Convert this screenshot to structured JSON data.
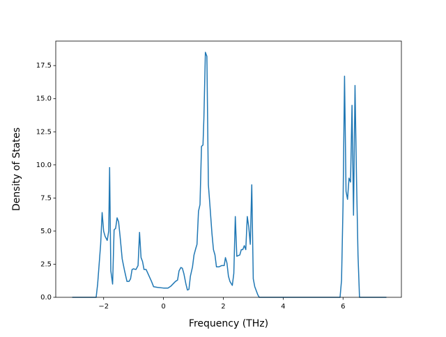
{
  "chart_data": {
    "type": "line",
    "xlabel": "Frequency (THz)",
    "ylabel": "Density of States",
    "x": [
      -3.05,
      -2.25,
      -2.2,
      -2.1,
      -2.05,
      -2.0,
      -1.95,
      -1.88,
      -1.83,
      -1.8,
      -1.76,
      -1.7,
      -1.65,
      -1.6,
      -1.55,
      -1.5,
      -1.45,
      -1.38,
      -1.3,
      -1.22,
      -1.15,
      -1.1,
      -1.05,
      -1.0,
      -0.92,
      -0.85,
      -0.8,
      -0.75,
      -0.7,
      -0.65,
      -0.58,
      -0.5,
      -0.4,
      -0.33,
      -0.2,
      0,
      0.15,
      0.25,
      0.4,
      0.47,
      0.52,
      0.58,
      0.63,
      0.68,
      0.75,
      0.8,
      0.85,
      0.9,
      0.97,
      1.02,
      1.08,
      1.12,
      1.17,
      1.22,
      1.27,
      1.32,
      1.35,
      1.4,
      1.45,
      1.5,
      1.55,
      1.62,
      1.67,
      1.72,
      1.77,
      1.85,
      1.95,
      2.03,
      2.07,
      2.12,
      2.17,
      2.22,
      2.3,
      2.35,
      2.4,
      2.45,
      2.5,
      2.55,
      2.6,
      2.65,
      2.7,
      2.75,
      2.8,
      2.85,
      2.9,
      2.95,
      3.0,
      3.05,
      3.15,
      3.2,
      5.9,
      5.95,
      6.0,
      6.05,
      6.1,
      6.15,
      6.2,
      6.25,
      6.3,
      6.35,
      6.4,
      6.45,
      6.5,
      6.55,
      7.45
    ],
    "series": [
      {
        "color": "#1f77b4",
        "values": [
          0,
          0,
          1.0,
          4.0,
          6.4,
          5.0,
          4.6,
          4.3,
          5.0,
          9.8,
          2.0,
          1.0,
          5.1,
          5.2,
          6.0,
          5.7,
          4.6,
          2.9,
          2.0,
          1.2,
          1.2,
          1.4,
          2.1,
          2.15,
          2.1,
          2.4,
          4.9,
          3.0,
          2.7,
          2.1,
          2.1,
          1.7,
          1.2,
          0.8,
          0.75,
          0.7,
          0.7,
          0.85,
          1.2,
          1.3,
          2.0,
          2.25,
          2.2,
          1.8,
          1.0,
          0.55,
          0.6,
          1.6,
          2.3,
          3.2,
          3.7,
          4.0,
          6.5,
          7.0,
          11.4,
          11.5,
          13.5,
          18.5,
          18.2,
          8.5,
          7.0,
          4.8,
          3.6,
          3.2,
          2.3,
          2.3,
          2.4,
          2.4,
          3.0,
          2.6,
          1.6,
          1.2,
          0.9,
          1.8,
          6.1,
          3.1,
          3.15,
          3.2,
          3.6,
          3.6,
          3.9,
          3.6,
          6.1,
          5.3,
          4.0,
          8.5,
          1.4,
          0.8,
          0.2,
          0,
          0,
          1.3,
          7.0,
          16.7,
          8.0,
          7.4,
          9.0,
          8.7,
          14.5,
          6.2,
          16.0,
          9.0,
          3.2,
          0,
          0
        ]
      }
    ],
    "xlim": [
      -3.6,
      7.95
    ],
    "ylim": [
      0,
      19.35
    ],
    "xticks": [
      {
        "value": -2,
        "label": "−2"
      },
      0,
      2,
      4,
      6
    ],
    "yticks": [
      {
        "value": 0,
        "label": "0.0"
      },
      {
        "value": 2.5,
        "label": "2.5"
      },
      {
        "value": 5,
        "label": "5.0"
      },
      {
        "value": 7.5,
        "label": "7.5"
      },
      {
        "value": 10,
        "label": "10.0"
      },
      {
        "value": 12.5,
        "label": "12.5"
      },
      {
        "value": 15,
        "label": "15.0"
      },
      {
        "value": 17.5,
        "label": "17.5"
      }
    ]
  }
}
